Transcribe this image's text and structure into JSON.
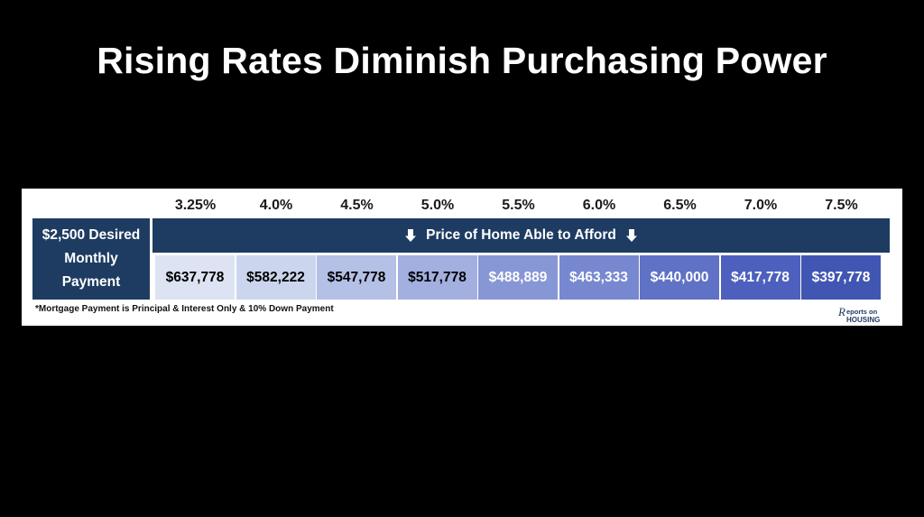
{
  "title": "Rising Rates Diminish Purchasing Power",
  "table": {
    "row_label_line1": "$2,500 Desired",
    "row_label_line2": "Monthly",
    "row_label_line3": "Payment",
    "header": "Price of Home Able to Afford",
    "footnote": "*Mortgage Payment is Principal & Interest Only & 10% Down Payment"
  },
  "logo": {
    "line1": "eports on",
    "line2": "HOUSING",
    "r_letter": "R"
  },
  "chart_data": {
    "type": "table",
    "columns": [
      "3.25%",
      "4.0%",
      "4.5%",
      "5.0%",
      "5.5%",
      "6.0%",
      "6.5%",
      "7.0%",
      "7.5%"
    ],
    "row_label": "$2,500 Desired Monthly Payment",
    "values": [
      "$637,778",
      "$582,222",
      "$547,778",
      "$517,778",
      "$488,889",
      "$463,333",
      "$440,000",
      "$417,778",
      "$397,778"
    ],
    "cell_colors": [
      "#dde3f3",
      "#ccd5ee",
      "#b5c0e6",
      "#a2afdf",
      "#8797d6",
      "#7888d0",
      "#5f72c6",
      "#4e60bd",
      "#4155b3"
    ],
    "text_colors": [
      "#000000",
      "#000000",
      "#000000",
      "#000000",
      "#ffffff",
      "#ffffff",
      "#ffffff",
      "#ffffff",
      "#ffffff"
    ],
    "header_color": "#1e3c62"
  }
}
